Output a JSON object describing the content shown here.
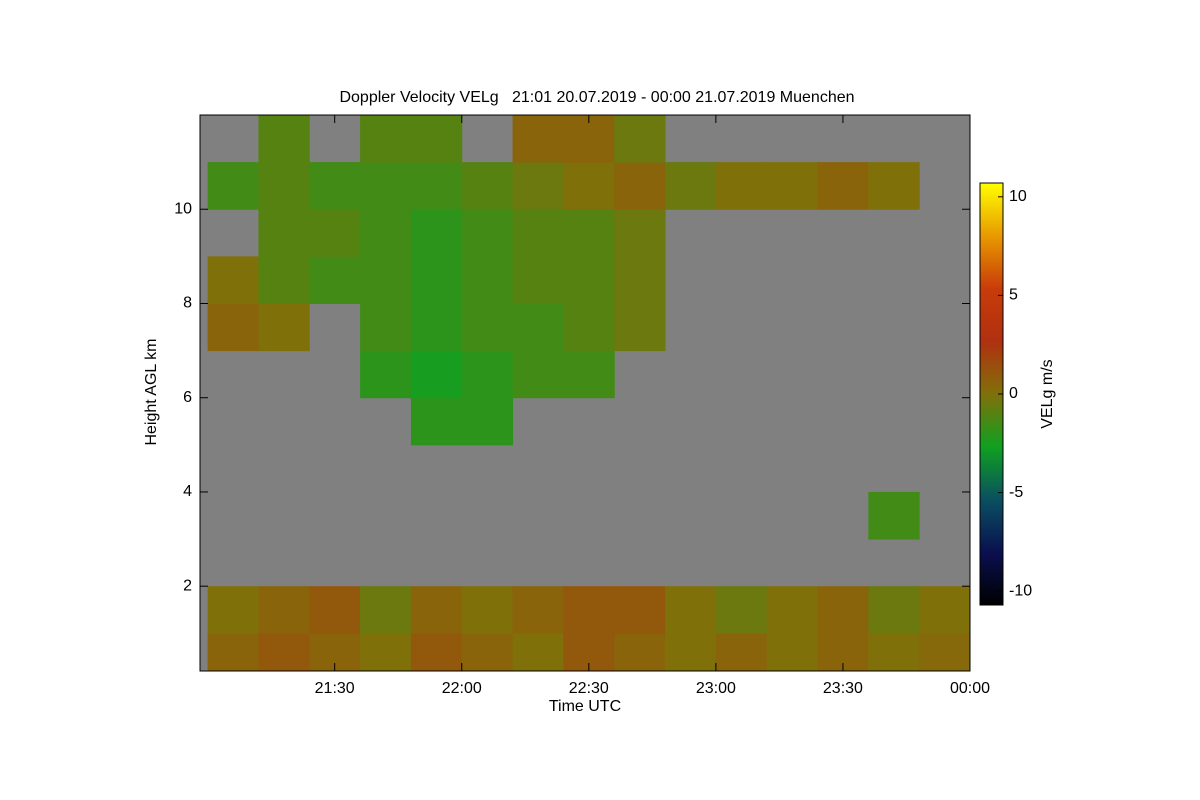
{
  "chart_data": {
    "type": "heatmap",
    "title": "Doppler Velocity VELg   21:01 20.07.2019 - 00:00 21.07.2019 Muenchen",
    "xlabel": "Time UTC",
    "ylabel": "Height AGL km",
    "colorbar_label": "VELg m/s",
    "xlim": [
      20.97,
      24
    ],
    "xticks": [
      {
        "value": 21.5,
        "label": "21:30"
      },
      {
        "value": 22,
        "label": "22:00"
      },
      {
        "value": 22.5,
        "label": "22:30"
      },
      {
        "value": 23,
        "label": "23:00"
      },
      {
        "value": 23.5,
        "label": "23:30"
      },
      {
        "value": 24,
        "label": "00:00"
      }
    ],
    "ylim": [
      0.2,
      12.0
    ],
    "yticks": [
      2,
      4,
      6,
      8,
      10
    ],
    "clim": [
      -10.7,
      10.7
    ],
    "cticks": [
      -10,
      -5,
      0,
      5,
      10
    ],
    "colorscale": [
      "#000000",
      "#0a1050",
      "#0a5060",
      "#10a020",
      "#80700a",
      "#b03010",
      "#c83c0a",
      "#e89a00",
      "#ffff00"
    ],
    "nodata_color": "#808080",
    "x": [
      21.1,
      21.3,
      21.5,
      21.7,
      21.9,
      22.1,
      22.3,
      22.5,
      22.7,
      22.9,
      23.1,
      23.3,
      23.5,
      23.7,
      23.9
    ],
    "y": [
      0.5,
      1.5,
      2.5,
      3.5,
      4.5,
      5.5,
      6.5,
      7.5,
      8.5,
      9.5,
      10.5,
      11.5
    ],
    "values": [
      [
        0.5,
        1,
        0.5,
        0,
        1,
        0.5,
        0,
        1,
        0.5,
        0,
        0.5,
        0,
        0.5,
        0,
        0.3
      ],
      [
        0,
        0.5,
        1,
        -0.5,
        0.5,
        0,
        0.5,
        1,
        1,
        0,
        -0.5,
        0,
        0.5,
        -0.5,
        0
      ],
      [
        null,
        null,
        null,
        null,
        null,
        null,
        null,
        null,
        null,
        null,
        null,
        null,
        null,
        null,
        null
      ],
      [
        null,
        null,
        null,
        null,
        null,
        null,
        null,
        null,
        null,
        null,
        null,
        null,
        null,
        -1.5,
        null
      ],
      [
        null,
        null,
        null,
        null,
        null,
        null,
        null,
        null,
        null,
        null,
        null,
        null,
        null,
        null,
        null
      ],
      [
        null,
        null,
        null,
        null,
        -2,
        -2,
        null,
        null,
        null,
        null,
        null,
        null,
        null,
        null,
        null
      ],
      [
        null,
        null,
        null,
        -2,
        -2.5,
        -2,
        -1.5,
        -1.5,
        null,
        null,
        null,
        null,
        null,
        null,
        null
      ],
      [
        0.5,
        0,
        null,
        -1.5,
        -2,
        -1.5,
        -1.5,
        -1,
        -0.5,
        null,
        null,
        null,
        null,
        null,
        null
      ],
      [
        0,
        -1,
        -1.5,
        -1.5,
        -2,
        -1.5,
        -1,
        -1,
        -0.5,
        null,
        null,
        null,
        null,
        null,
        null
      ],
      [
        null,
        -1,
        -1,
        -1.5,
        -2,
        -1.5,
        -1,
        -1,
        -0.5,
        null,
        null,
        null,
        null,
        null,
        null
      ],
      [
        -1.5,
        -1,
        -1.5,
        -1.5,
        -1.5,
        -1,
        -0.5,
        0,
        0.5,
        -0.5,
        0,
        0,
        0.5,
        0,
        null
      ],
      [
        null,
        -1,
        null,
        -1,
        -1,
        null,
        0.5,
        0.5,
        -0.5,
        null,
        null,
        null,
        null,
        null,
        null
      ]
    ]
  }
}
